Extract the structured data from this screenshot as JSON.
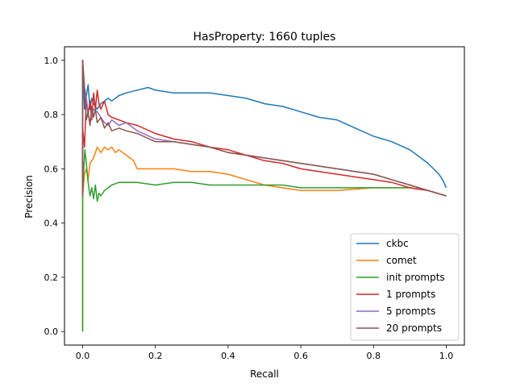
{
  "chart_data": {
    "type": "line",
    "title": "HasProperty: 1660 tuples",
    "xlabel": "Recall",
    "ylabel": "Precision",
    "xlim": [
      -0.05,
      1.05
    ],
    "ylim": [
      -0.05,
      1.05
    ],
    "xticks": [
      0.0,
      0.2,
      0.4,
      0.6,
      0.8,
      1.0
    ],
    "xtick_labels": [
      "0.0",
      "0.2",
      "0.4",
      "0.6",
      "0.8",
      "1.0"
    ],
    "yticks": [
      0.0,
      0.2,
      0.4,
      0.6,
      0.8,
      1.0
    ],
    "ytick_labels": [
      "0.0",
      "0.2",
      "0.4",
      "0.6",
      "0.8",
      "1.0"
    ],
    "grid": false,
    "legend_position": "lower-right",
    "series": [
      {
        "name": "ckbc",
        "color": "#1f77b4",
        "x": [
          0.0,
          0.0,
          0.005,
          0.01,
          0.015,
          0.02,
          0.025,
          0.03,
          0.04,
          0.05,
          0.06,
          0.07,
          0.08,
          0.1,
          0.12,
          0.15,
          0.18,
          0.2,
          0.25,
          0.3,
          0.35,
          0.4,
          0.45,
          0.5,
          0.55,
          0.6,
          0.65,
          0.7,
          0.75,
          0.8,
          0.85,
          0.9,
          0.95,
          0.98,
          0.99,
          1.0
        ],
        "y": [
          0.5,
          1.0,
          0.82,
          0.87,
          0.91,
          0.82,
          0.86,
          0.84,
          0.82,
          0.84,
          0.85,
          0.86,
          0.85,
          0.87,
          0.88,
          0.89,
          0.9,
          0.89,
          0.88,
          0.88,
          0.88,
          0.87,
          0.86,
          0.84,
          0.83,
          0.81,
          0.79,
          0.78,
          0.75,
          0.72,
          0.7,
          0.67,
          0.62,
          0.58,
          0.56,
          0.53
        ]
      },
      {
        "name": "comet",
        "color": "#ff7f0e",
        "x": [
          0.0,
          0.0,
          0.005,
          0.01,
          0.015,
          0.02,
          0.03,
          0.04,
          0.05,
          0.06,
          0.07,
          0.08,
          0.09,
          0.1,
          0.12,
          0.14,
          0.15,
          0.17,
          0.2,
          0.25,
          0.3,
          0.35,
          0.4,
          0.45,
          0.5,
          0.55,
          0.6,
          0.65,
          0.7,
          0.8,
          0.9,
          0.95,
          1.0
        ],
        "y": [
          0.0,
          0.5,
          0.58,
          0.6,
          0.56,
          0.62,
          0.64,
          0.68,
          0.66,
          0.68,
          0.67,
          0.68,
          0.66,
          0.67,
          0.65,
          0.63,
          0.6,
          0.6,
          0.6,
          0.6,
          0.59,
          0.59,
          0.58,
          0.56,
          0.54,
          0.53,
          0.52,
          0.52,
          0.52,
          0.53,
          0.53,
          0.52,
          0.5
        ]
      },
      {
        "name": "init prompts",
        "color": "#2ca02c",
        "x": [
          0.0,
          0.0,
          0.003,
          0.006,
          0.01,
          0.015,
          0.02,
          0.025,
          0.03,
          0.035,
          0.04,
          0.045,
          0.05,
          0.06,
          0.07,
          0.08,
          0.1,
          0.15,
          0.2,
          0.25,
          0.3,
          0.35,
          0.4,
          0.45,
          0.5,
          0.55,
          0.6,
          0.65,
          0.7,
          0.75,
          0.8,
          0.85,
          0.9,
          0.95,
          1.0
        ],
        "y": [
          0.0,
          0.5,
          0.6,
          0.67,
          0.62,
          0.55,
          0.5,
          0.53,
          0.49,
          0.54,
          0.48,
          0.51,
          0.5,
          0.52,
          0.53,
          0.54,
          0.55,
          0.55,
          0.54,
          0.55,
          0.55,
          0.54,
          0.54,
          0.54,
          0.54,
          0.54,
          0.53,
          0.53,
          0.53,
          0.53,
          0.53,
          0.53,
          0.53,
          0.52,
          0.5
        ]
      },
      {
        "name": "1 prompts",
        "color": "#d62728",
        "x": [
          0.0,
          0.0,
          0.005,
          0.01,
          0.015,
          0.02,
          0.025,
          0.03,
          0.035,
          0.04,
          0.045,
          0.05,
          0.06,
          0.07,
          0.08,
          0.1,
          0.12,
          0.15,
          0.2,
          0.25,
          0.3,
          0.35,
          0.4,
          0.45,
          0.5,
          0.55,
          0.6,
          0.65,
          0.7,
          0.75,
          0.8,
          0.85,
          0.9,
          0.95,
          1.0
        ],
        "y": [
          0.5,
          0.75,
          0.68,
          0.86,
          0.8,
          0.85,
          0.78,
          0.88,
          0.82,
          0.89,
          0.84,
          0.82,
          0.85,
          0.8,
          0.79,
          0.78,
          0.77,
          0.76,
          0.73,
          0.71,
          0.7,
          0.68,
          0.67,
          0.65,
          0.63,
          0.62,
          0.6,
          0.59,
          0.58,
          0.57,
          0.56,
          0.55,
          0.53,
          0.52,
          0.5
        ]
      },
      {
        "name": "5 prompts",
        "color": "#9467bd",
        "x": [
          0.0,
          0.0,
          0.005,
          0.01,
          0.015,
          0.02,
          0.025,
          0.03,
          0.04,
          0.05,
          0.06,
          0.07,
          0.08,
          0.1,
          0.12,
          0.15,
          0.2,
          0.25,
          0.3,
          0.35,
          0.4,
          0.45,
          0.5,
          0.55,
          0.6,
          0.65,
          0.7,
          0.75,
          0.8,
          0.85,
          0.9,
          0.95,
          1.0
        ],
        "y": [
          0.5,
          1.0,
          0.9,
          0.86,
          0.8,
          0.77,
          0.8,
          0.82,
          0.81,
          0.79,
          0.77,
          0.76,
          0.78,
          0.76,
          0.77,
          0.74,
          0.71,
          0.7,
          0.69,
          0.68,
          0.66,
          0.65,
          0.64,
          0.63,
          0.62,
          0.61,
          0.6,
          0.59,
          0.58,
          0.56,
          0.54,
          0.52,
          0.5
        ]
      },
      {
        "name": "20 prompts",
        "color": "#8c564b",
        "x": [
          0.0,
          0.0,
          0.005,
          0.01,
          0.015,
          0.02,
          0.025,
          0.03,
          0.035,
          0.04,
          0.05,
          0.06,
          0.07,
          0.08,
          0.1,
          0.12,
          0.15,
          0.2,
          0.25,
          0.3,
          0.35,
          0.4,
          0.45,
          0.5,
          0.55,
          0.6,
          0.65,
          0.7,
          0.75,
          0.8,
          0.85,
          0.9,
          0.95,
          1.0
        ],
        "y": [
          0.5,
          1.0,
          0.9,
          0.78,
          0.81,
          0.76,
          0.83,
          0.79,
          0.82,
          0.77,
          0.79,
          0.75,
          0.77,
          0.74,
          0.75,
          0.74,
          0.73,
          0.7,
          0.7,
          0.69,
          0.68,
          0.66,
          0.65,
          0.64,
          0.63,
          0.62,
          0.61,
          0.6,
          0.59,
          0.58,
          0.56,
          0.54,
          0.52,
          0.5
        ]
      }
    ]
  }
}
